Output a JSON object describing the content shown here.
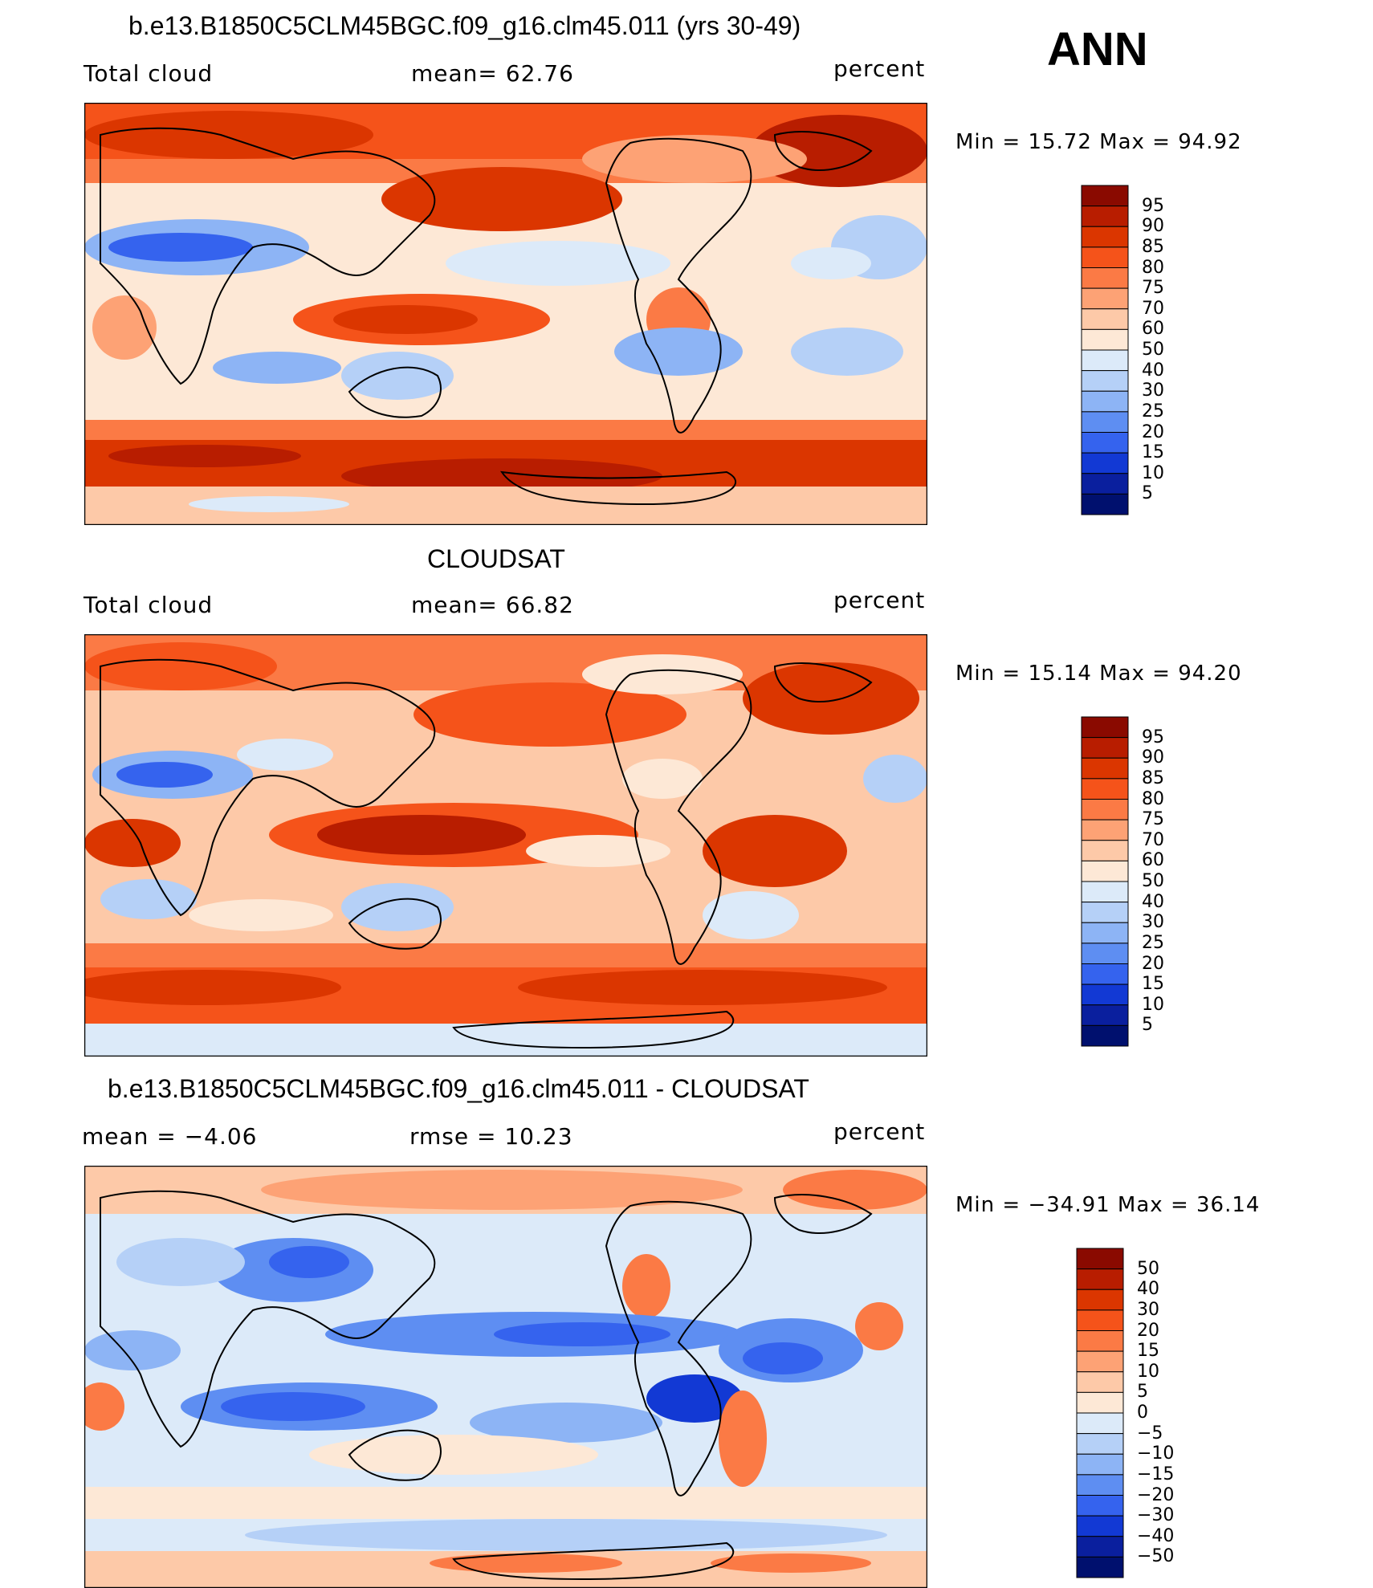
{
  "season": "ANN",
  "panels": [
    {
      "title": "b.e13.B1850C5CLM45BGC.f09_g16.clm45.011 (yrs 30-49)",
      "left": "Total cloud",
      "middle": "mean=   62.76",
      "units": "percent",
      "minmax": "Min =   15.72  Max =   94.92",
      "type": "abs"
    },
    {
      "title": "CLOUDSAT",
      "left": "Total cloud",
      "middle": "mean=   66.82",
      "units": "percent",
      "minmax": "Min =   15.14  Max =   94.20",
      "type": "abs"
    },
    {
      "title": "b.e13.B1850C5CLM45BGC.f09_g16.clm45.011 - CLOUDSAT",
      "left": "mean =   −4.06",
      "middle": "rmse =   10.23",
      "units": "percent",
      "minmax": "Min = −34.91  Max =   36.14",
      "type": "diff"
    }
  ],
  "colorbars": {
    "abs": {
      "labels": [
        "95",
        "90",
        "85",
        "80",
        "75",
        "70",
        "60",
        "50",
        "40",
        "30",
        "25",
        "20",
        "15",
        "10",
        "5"
      ],
      "colors": [
        "#8a0a00",
        "#b81d00",
        "#db3600",
        "#f5531a",
        "#fb7a45",
        "#fda275",
        "#fdc9a8",
        "#fde8d6",
        "#dceaf9",
        "#b5d0f7",
        "#8db4f5",
        "#5e8ef2",
        "#3563ee",
        "#1239d4",
        "#0a1f9e",
        "#00106e"
      ]
    },
    "diff": {
      "labels": [
        "50",
        "40",
        "30",
        "20",
        "15",
        "10",
        "5",
        "0",
        "−5",
        "−10",
        "−15",
        "−20",
        "−30",
        "−40",
        "−50"
      ],
      "colors": [
        "#8a0a00",
        "#b81d00",
        "#db3600",
        "#f5531a",
        "#fb7a45",
        "#fda275",
        "#fdc9a8",
        "#fde8d6",
        "#dceaf9",
        "#b5d0f7",
        "#8db4f5",
        "#5e8ef2",
        "#3563ee",
        "#1239d4",
        "#0a1f9e",
        "#00106e"
      ]
    }
  }
}
